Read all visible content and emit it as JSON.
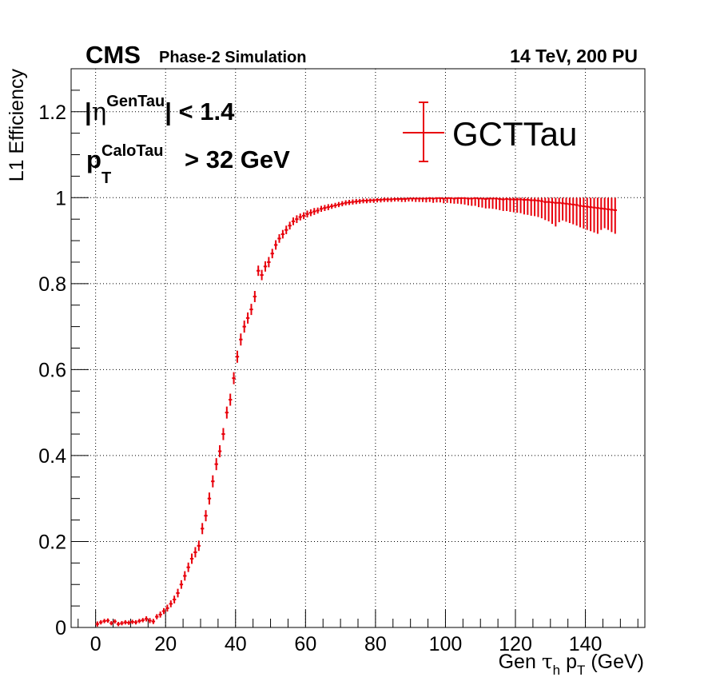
{
  "header": {
    "experiment": "CMS",
    "status": "Phase-2 Simulation",
    "energy_pu": "14 TeV, 200 PU"
  },
  "cuts": {
    "eta_prefix": "|",
    "eta_symbol": "η",
    "eta_superscript": "GenTau",
    "eta_suffix": "| < 1.4",
    "pt_symbol": "p",
    "pt_subscript": "T",
    "pt_superscript": "CaloTau",
    "pt_suffix": "> 32 GeV"
  },
  "chart_data": {
    "type": "scatter",
    "title": "",
    "xlabel_parts": [
      "Gen ",
      "τ",
      "h",
      " p",
      "T",
      " (GeV)"
    ],
    "ylabel": "L1 Efficiency",
    "xlim": [
      -7,
      157
    ],
    "ylim": [
      0,
      1.3
    ],
    "xticks": [
      0,
      20,
      40,
      60,
      80,
      100,
      120,
      140
    ],
    "xtick_labels": [
      "0",
      "20",
      "40",
      "60",
      "80",
      "100",
      "120",
      "140"
    ],
    "yticks": [
      0,
      0.2,
      0.4,
      0.6,
      0.8,
      1.0,
      1.2
    ],
    "ytick_labels": [
      "0",
      "0.2",
      "0.4",
      "0.6",
      "0.8",
      "1",
      "1.2"
    ],
    "grid": true,
    "legend": "top-right",
    "color": "#e8000b",
    "series": [
      {
        "name": "GCTTau",
        "bin_width": 1,
        "x": [
          0.5,
          1.5,
          2.5,
          3.5,
          4.5,
          5.5,
          6.5,
          7.5,
          8.5,
          9.5,
          10.5,
          11.5,
          12.5,
          13.5,
          14.5,
          15.5,
          16.5,
          17.5,
          18.5,
          19.5,
          20.5,
          21.5,
          22.5,
          23.5,
          24.5,
          25.5,
          26.5,
          27.5,
          28.5,
          29.5,
          30.5,
          31.5,
          32.5,
          33.5,
          34.5,
          35.5,
          36.5,
          37.5,
          38.5,
          39.5,
          40.5,
          41.5,
          42.5,
          43.5,
          44.5,
          45.5,
          46.5,
          47.5,
          48.5,
          49.5,
          50.5,
          51.5,
          52.5,
          53.5,
          54.5,
          55.5,
          56.5,
          57.5,
          58.5,
          59.5,
          60.5,
          61.5,
          62.5,
          63.5,
          64.5,
          65.5,
          66.5,
          67.5,
          68.5,
          69.5,
          70.5,
          71.5,
          72.5,
          73.5,
          74.5,
          75.5,
          76.5,
          77.5,
          78.5,
          79.5,
          80.5,
          81.5,
          82.5,
          83.5,
          84.5,
          85.5,
          86.5,
          87.5,
          88.5,
          89.5,
          90.5,
          91.5,
          92.5,
          93.5,
          94.5,
          95.5,
          96.5,
          97.5,
          98.5,
          99.5,
          100.5,
          101.5,
          102.5,
          103.5,
          104.5,
          105.5,
          106.5,
          107.5,
          108.5,
          109.5,
          110.5,
          111.5,
          112.5,
          113.5,
          114.5,
          115.5,
          116.5,
          117.5,
          118.5,
          119.5,
          120.5,
          121.5,
          122.5,
          123.5,
          124.5,
          125.5,
          126.5,
          127.5,
          128.5,
          129.5,
          130.5,
          131.5,
          132.5,
          133.5,
          134.5,
          135.5,
          136.5,
          137.5,
          138.5,
          139.5,
          140.5,
          141.5,
          142.5,
          143.5,
          144.5,
          145.5,
          146.5,
          147.5,
          148.5
        ],
        "y": [
          0.008,
          0.012,
          0.015,
          0.016,
          0.01,
          0.014,
          0.008,
          0.01,
          0.012,
          0.011,
          0.013,
          0.012,
          0.015,
          0.017,
          0.02,
          0.016,
          0.014,
          0.025,
          0.03,
          0.038,
          0.045,
          0.055,
          0.065,
          0.08,
          0.1,
          0.12,
          0.14,
          0.16,
          0.175,
          0.19,
          0.23,
          0.26,
          0.3,
          0.34,
          0.38,
          0.41,
          0.45,
          0.5,
          0.53,
          0.58,
          0.63,
          0.67,
          0.7,
          0.72,
          0.74,
          0.77,
          0.83,
          0.82,
          0.84,
          0.85,
          0.87,
          0.89,
          0.905,
          0.915,
          0.925,
          0.935,
          0.945,
          0.95,
          0.955,
          0.958,
          0.962,
          0.965,
          0.968,
          0.97,
          0.974,
          0.976,
          0.978,
          0.98,
          0.982,
          0.984,
          0.986,
          0.988,
          0.989,
          0.99,
          0.991,
          0.992,
          0.993,
          0.993,
          0.994,
          0.994,
          0.995,
          0.995,
          0.996,
          0.996,
          0.996,
          0.997,
          0.997,
          0.997,
          0.997,
          0.998,
          0.998,
          0.998,
          0.998,
          0.998,
          0.998,
          0.999,
          0.998,
          0.999,
          0.999,
          0.998,
          0.999,
          0.999,
          0.998,
          0.999,
          0.999,
          0.999,
          0.998,
          0.998,
          0.999,
          0.998,
          0.998,
          0.997,
          0.998,
          0.998,
          0.998,
          0.997,
          0.996,
          0.997,
          0.996,
          0.996,
          0.996,
          0.996,
          0.995,
          0.995,
          0.994,
          0.994,
          0.993,
          0.992,
          0.99,
          0.99,
          0.989,
          0.988,
          0.988,
          0.987,
          0.986,
          0.985,
          0.984,
          0.983,
          0.981,
          0.98,
          0.979,
          0.978,
          0.977,
          0.976,
          0.975,
          0.974,
          0.973,
          0.972,
          0.971
        ],
        "yerr_low": [
          0.006,
          0.005,
          0.005,
          0.005,
          0.005,
          0.005,
          0.005,
          0.005,
          0.005,
          0.005,
          0.005,
          0.005,
          0.005,
          0.005,
          0.006,
          0.006,
          0.006,
          0.006,
          0.007,
          0.007,
          0.008,
          0.008,
          0.009,
          0.01,
          0.01,
          0.011,
          0.011,
          0.012,
          0.012,
          0.012,
          0.013,
          0.013,
          0.014,
          0.014,
          0.014,
          0.014,
          0.014,
          0.014,
          0.014,
          0.014,
          0.014,
          0.014,
          0.014,
          0.013,
          0.013,
          0.013,
          0.012,
          0.012,
          0.012,
          0.012,
          0.011,
          0.011,
          0.01,
          0.01,
          0.01,
          0.009,
          0.009,
          0.009,
          0.008,
          0.008,
          0.008,
          0.008,
          0.008,
          0.007,
          0.007,
          0.007,
          0.007,
          0.006,
          0.006,
          0.006,
          0.006,
          0.006,
          0.006,
          0.006,
          0.006,
          0.006,
          0.006,
          0.006,
          0.006,
          0.006,
          0.006,
          0.006,
          0.006,
          0.006,
          0.006,
          0.006,
          0.006,
          0.007,
          0.007,
          0.007,
          0.007,
          0.008,
          0.008,
          0.008,
          0.009,
          0.009,
          0.01,
          0.01,
          0.01,
          0.011,
          0.011,
          0.012,
          0.012,
          0.013,
          0.014,
          0.015,
          0.016,
          0.017,
          0.018,
          0.02,
          0.021,
          0.022,
          0.023,
          0.024,
          0.025,
          0.026,
          0.027,
          0.028,
          0.029,
          0.03,
          0.031,
          0.032,
          0.034,
          0.035,
          0.036,
          0.037,
          0.038,
          0.04,
          0.042,
          0.045,
          0.05,
          0.055,
          0.045,
          0.04,
          0.042,
          0.044,
          0.046,
          0.048,
          0.05,
          0.052,
          0.054,
          0.056,
          0.058,
          0.06,
          0.05,
          0.045,
          0.048,
          0.052,
          0.055,
          0.05,
          0.048
        ],
        "yerr_high": [
          0.006,
          0.005,
          0.005,
          0.005,
          0.005,
          0.005,
          0.005,
          0.005,
          0.005,
          0.005,
          0.005,
          0.005,
          0.005,
          0.005,
          0.006,
          0.006,
          0.006,
          0.006,
          0.007,
          0.007,
          0.008,
          0.008,
          0.009,
          0.01,
          0.01,
          0.011,
          0.011,
          0.012,
          0.012,
          0.012,
          0.013,
          0.013,
          0.014,
          0.014,
          0.014,
          0.014,
          0.014,
          0.014,
          0.014,
          0.014,
          0.014,
          0.014,
          0.014,
          0.013,
          0.013,
          0.013,
          0.012,
          0.012,
          0.012,
          0.012,
          0.011,
          0.011,
          0.01,
          0.01,
          0.01,
          0.009,
          0.009,
          0.009,
          0.008,
          0.008,
          0.008,
          0.008,
          0.008,
          0.007,
          0.007,
          0.007,
          0.007,
          0.006,
          0.006,
          0.006,
          0.006,
          0.006,
          0.006,
          0.006,
          0.006,
          0.005,
          0.005,
          0.005,
          0.004,
          0.004,
          0.004,
          0.004,
          0.004,
          0.004,
          0.004,
          0.003,
          0.003,
          0.003,
          0.003,
          0.002,
          0.002,
          0.002,
          0.002,
          0.002,
          0.002,
          0.001,
          0.002,
          0.001,
          0.001,
          0.002,
          0.001,
          0.001,
          0.002,
          0.001,
          0.001,
          0.001,
          0.002,
          0.002,
          0.001,
          0.002,
          0.002,
          0.003,
          0.002,
          0.002,
          0.002,
          0.003,
          0.004,
          0.003,
          0.004,
          0.004,
          0.004,
          0.004,
          0.005,
          0.005,
          0.006,
          0.006,
          0.007,
          0.008,
          0.01,
          0.01,
          0.011,
          0.012,
          0.012,
          0.013,
          0.014,
          0.015,
          0.016,
          0.017,
          0.019,
          0.02,
          0.021,
          0.022,
          0.023,
          0.024,
          0.025,
          0.026,
          0.027,
          0.028,
          0.029
        ]
      }
    ]
  }
}
